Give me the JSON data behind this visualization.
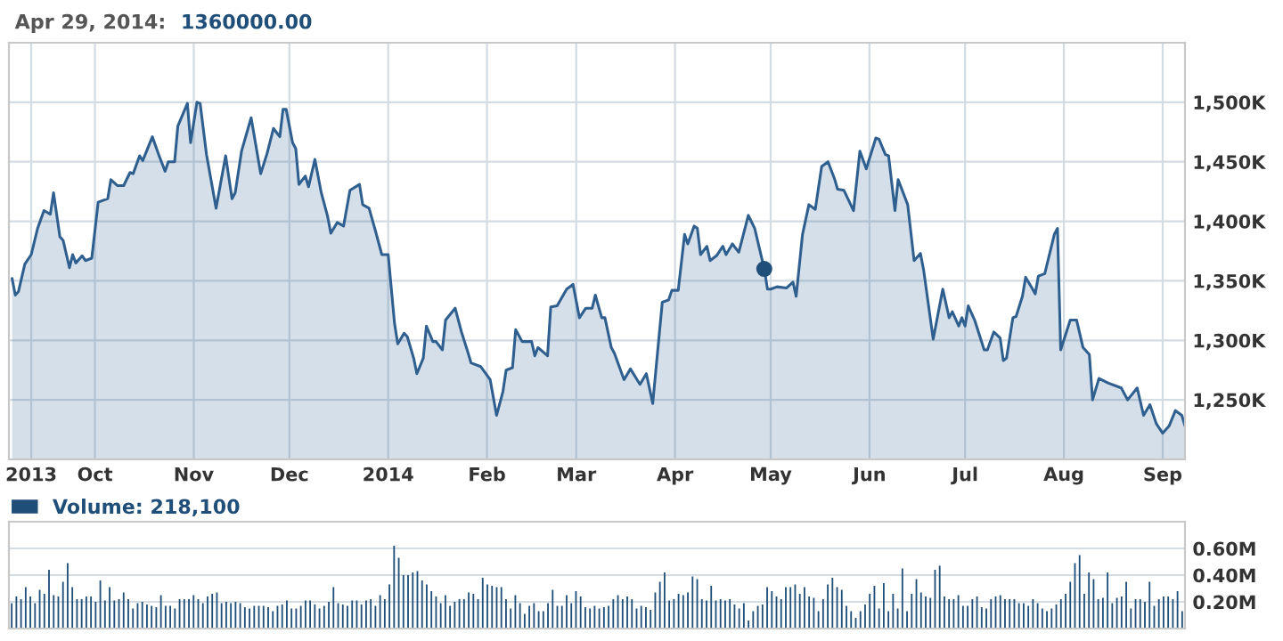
{
  "chart_data": [
    {
      "type": "area",
      "annotations": [
        "Apr 29, 2014:",
        "1360000.00"
      ],
      "xlim": [
        "2013-09-04",
        "2014-09-08"
      ],
      "xticks": [
        {
          "value": "2013-09-11",
          "label": "2013"
        },
        {
          "value": "2013-10-01",
          "label": "Oct"
        },
        {
          "value": "2013-11-01",
          "label": "Nov"
        },
        {
          "value": "2013-12-01",
          "label": "Dec"
        },
        {
          "value": "2014-01-01",
          "label": "2014"
        },
        {
          "value": "2014-02-01",
          "label": "Feb"
        },
        {
          "value": "2014-03-01",
          "label": "Mar"
        },
        {
          "value": "2014-04-01",
          "label": "Apr"
        },
        {
          "value": "2014-05-01",
          "label": "May"
        },
        {
          "value": "2014-06-01",
          "label": "Jun"
        },
        {
          "value": "2014-07-01",
          "label": "Jul"
        },
        {
          "value": "2014-08-01",
          "label": "Aug"
        },
        {
          "value": "2014-09-01",
          "label": "Sep"
        }
      ],
      "ylim": [
        1200,
        1550
      ],
      "yticks": [
        {
          "value": 1250,
          "label": "1,250K"
        },
        {
          "value": 1300,
          "label": "1,300K"
        },
        {
          "value": 1350,
          "label": "1,350K"
        },
        {
          "value": 1400,
          "label": "1,400K"
        },
        {
          "value": 1450,
          "label": "1,450K"
        },
        {
          "value": 1500,
          "label": "1,500K"
        }
      ],
      "grid": true,
      "series": [
        {
          "type": "area",
          "color": "#2f5f8f",
          "marker": "none",
          "x": [
            "2013-09-05",
            "2013-09-06",
            "2013-09-07",
            "2013-09-09",
            "2013-09-11",
            "2013-09-13",
            "2013-09-15",
            "2013-09-17",
            "2013-09-18",
            "2013-09-20",
            "2013-09-21",
            "2013-09-23",
            "2013-09-24",
            "2013-09-25",
            "2013-09-27",
            "2013-09-28",
            "2013-09-30",
            "2013-10-02",
            "2013-10-05",
            "2013-10-06",
            "2013-10-08",
            "2013-10-10",
            "2013-10-12",
            "2013-10-13",
            "2013-10-15",
            "2013-10-16",
            "2013-10-19",
            "2013-10-21",
            "2013-10-23",
            "2013-10-24",
            "2013-10-26",
            "2013-10-27",
            "2013-10-30",
            "2013-10-31",
            "2013-11-02",
            "2013-11-03",
            "2013-11-05",
            "2013-11-08",
            "2013-11-11",
            "2013-11-13",
            "2013-11-14",
            "2013-11-16",
            "2013-11-19",
            "2013-11-22",
            "2013-11-24",
            "2013-11-26",
            "2013-11-28",
            "2013-11-29",
            "2013-11-30",
            "2013-12-02",
            "2013-12-03",
            "2013-12-04",
            "2013-12-06",
            "2013-12-07",
            "2013-12-09",
            "2013-12-11",
            "2013-12-13",
            "2013-12-14",
            "2013-12-16",
            "2013-12-18",
            "2013-12-20",
            "2013-12-23",
            "2013-12-24",
            "2013-12-26",
            "2013-12-28",
            "2013-12-30",
            "2014-01-01",
            "2014-01-03",
            "2014-01-04",
            "2014-01-06",
            "2014-01-07",
            "2014-01-09",
            "2014-01-10",
            "2014-01-12",
            "2014-01-13",
            "2014-01-15",
            "2014-01-16",
            "2014-01-18",
            "2014-01-19",
            "2014-01-22",
            "2014-01-24",
            "2014-01-26",
            "2014-01-27",
            "2014-01-30",
            "2014-02-02",
            "2014-02-04",
            "2014-02-06",
            "2014-02-07",
            "2014-02-09",
            "2014-02-10",
            "2014-02-12",
            "2014-02-15",
            "2014-02-16",
            "2014-02-17",
            "2014-02-20",
            "2014-02-21",
            "2014-02-23",
            "2014-02-26",
            "2014-02-28",
            "2014-03-02",
            "2014-03-04",
            "2014-03-06",
            "2014-03-07",
            "2014-03-09",
            "2014-03-10",
            "2014-03-12",
            "2014-03-13",
            "2014-03-16",
            "2014-03-18",
            "2014-03-21",
            "2014-03-23",
            "2014-03-25",
            "2014-03-28",
            "2014-03-30",
            "2014-03-31",
            "2014-04-02",
            "2014-04-04",
            "2014-04-05",
            "2014-04-07",
            "2014-04-08",
            "2014-04-09",
            "2014-04-11",
            "2014-04-12",
            "2014-04-14",
            "2014-04-16",
            "2014-04-17",
            "2014-04-19",
            "2014-04-21",
            "2014-04-24",
            "2014-04-26",
            "2014-04-29",
            "2014-04-30",
            "2014-05-01",
            "2014-05-03",
            "2014-05-06",
            "2014-05-08",
            "2014-05-09",
            "2014-05-11",
            "2014-05-13",
            "2014-05-15",
            "2014-05-17",
            "2014-05-19",
            "2014-05-21",
            "2014-05-22",
            "2014-05-24",
            "2014-05-27",
            "2014-05-29",
            "2014-05-31",
            "2014-06-03",
            "2014-06-04",
            "2014-06-06",
            "2014-06-07",
            "2014-06-09",
            "2014-06-10",
            "2014-06-13",
            "2014-06-15",
            "2014-06-17",
            "2014-06-18",
            "2014-06-21",
            "2014-06-24",
            "2014-06-26",
            "2014-06-27",
            "2014-06-29",
            "2014-06-30",
            "2014-07-01",
            "2014-07-02",
            "2014-07-04",
            "2014-07-07",
            "2014-07-08",
            "2014-07-10",
            "2014-07-12",
            "2014-07-13",
            "2014-07-14",
            "2014-07-16",
            "2014-07-17",
            "2014-07-19",
            "2014-07-20",
            "2014-07-22",
            "2014-07-23",
            "2014-07-24",
            "2014-07-26",
            "2014-07-29",
            "2014-07-30",
            "2014-07-31",
            "2014-08-03",
            "2014-08-05",
            "2014-08-07",
            "2014-08-09",
            "2014-08-10",
            "2014-08-12",
            "2014-08-15",
            "2014-08-19",
            "2014-08-21",
            "2014-08-24",
            "2014-08-26",
            "2014-08-28",
            "2014-08-30",
            "2014-09-01",
            "2014-09-03",
            "2014-09-05",
            "2014-09-07",
            "2014-09-08"
          ],
          "values": [
            1352,
            1338,
            1341,
            1364,
            1372,
            1394,
            1409,
            1406,
            1424,
            1387,
            1384,
            1361,
            1372,
            1365,
            1371,
            1367,
            1369,
            1416,
            1419,
            1435,
            1430,
            1430,
            1441,
            1440,
            1455,
            1451,
            1471,
            1456,
            1442,
            1450,
            1450,
            1480,
            1499,
            1466,
            1500,
            1499,
            1456,
            1411,
            1455,
            1419,
            1424,
            1459,
            1487,
            1440,
            1457,
            1478,
            1471,
            1494,
            1494,
            1466,
            1461,
            1431,
            1438,
            1429,
            1452,
            1424,
            1404,
            1390,
            1399,
            1396,
            1426,
            1431,
            1414,
            1411,
            1392,
            1372,
            1372,
            1314,
            1297,
            1306,
            1303,
            1285,
            1272,
            1285,
            1312,
            1299,
            1299,
            1292,
            1317,
            1327,
            1307,
            1290,
            1281,
            1278,
            1267,
            1237,
            1257,
            1275,
            1277,
            1309,
            1299,
            1299,
            1287,
            1294,
            1287,
            1328,
            1329,
            1343,
            1347,
            1319,
            1327,
            1327,
            1338,
            1319,
            1319,
            1294,
            1289,
            1267,
            1276,
            1263,
            1272,
            1247,
            1332,
            1334,
            1342,
            1342,
            1389,
            1381,
            1396,
            1394,
            1372,
            1379,
            1367,
            1371,
            1379,
            1372,
            1381,
            1374,
            1405,
            1394,
            1360,
            1343,
            1343,
            1345,
            1344,
            1349,
            1337,
            1389,
            1414,
            1410,
            1446,
            1450,
            1436,
            1427,
            1426,
            1409,
            1459,
            1444,
            1470,
            1469,
            1456,
            1455,
            1409,
            1435,
            1414,
            1367,
            1373,
            1359,
            1301,
            1343,
            1319,
            1324,
            1312,
            1319,
            1312,
            1329,
            1317,
            1292,
            1292,
            1307,
            1302,
            1283,
            1285,
            1319,
            1320,
            1337,
            1353,
            1344,
            1339,
            1354,
            1356,
            1389,
            1394,
            1292,
            1317,
            1317,
            1294,
            1288,
            1250,
            1268,
            1264,
            1260,
            1250,
            1260,
            1237,
            1246,
            1230,
            1222,
            1228,
            1241,
            1237,
            1228
          ]
        },
        {
          "type": "scatter",
          "color": "#1f4e79",
          "marker": "circle",
          "x": [
            "2014-04-29"
          ],
          "values": [
            1360
          ]
        }
      ]
    },
    {
      "type": "bar",
      "tick_labels": "y",
      "grid": "y",
      "legend": "top left",
      "ylim": [
        0,
        0.8
      ],
      "yticks": [
        {
          "value": 0.2,
          "label": "0.20M"
        },
        {
          "value": 0.4,
          "label": "0.40M"
        },
        {
          "value": 0.6,
          "label": "0.60M"
        }
      ],
      "categories": [
        null,
        null,
        null,
        null,
        null,
        null,
        null,
        null,
        null,
        null,
        null,
        null,
        null,
        null,
        null,
        null,
        null,
        null,
        null,
        null,
        null,
        null,
        null,
        null,
        null,
        null,
        null,
        null,
        null,
        null,
        null,
        null,
        null,
        null,
        null,
        null,
        null,
        null,
        null,
        null,
        null,
        null,
        null,
        null,
        null,
        null,
        null,
        null,
        null,
        null,
        null,
        null,
        null,
        null,
        null,
        null,
        null,
        null,
        null,
        null,
        null,
        null,
        null,
        null,
        null,
        null,
        null,
        null,
        null,
        null,
        null,
        null,
        null,
        null,
        null,
        null,
        null,
        null,
        null,
        null,
        null,
        null,
        null,
        null,
        null,
        null,
        null,
        null,
        null,
        null,
        null,
        null,
        null,
        null,
        null,
        null,
        null,
        null,
        null,
        null,
        null,
        null,
        null,
        null,
        null,
        null,
        null,
        null,
        null,
        null,
        null,
        null,
        null,
        null,
        null,
        null,
        null,
        null,
        null,
        null,
        null,
        null,
        null,
        null,
        null,
        null,
        null,
        null,
        null,
        null,
        null,
        null,
        null,
        null,
        null,
        null,
        null,
        null,
        null,
        null,
        null,
        null,
        null,
        null,
        null,
        null,
        null,
        null,
        null,
        null,
        null,
        null,
        null,
        null,
        null,
        null,
        null,
        null,
        null,
        null,
        null,
        null,
        null,
        null,
        null,
        null,
        null,
        null,
        null,
        null,
        null,
        null,
        null,
        null,
        null,
        null,
        null,
        null,
        null,
        null,
        null,
        null,
        null,
        null,
        null,
        null,
        null,
        null,
        null,
        null,
        null,
        null,
        null,
        null,
        null,
        null,
        null,
        null,
        null,
        null,
        null,
        null,
        null,
        null,
        null,
        null,
        null,
        null,
        null,
        null,
        null,
        null,
        null,
        null,
        null,
        null,
        null,
        null,
        null,
        null,
        null,
        null,
        null,
        null,
        null,
        null,
        null,
        null,
        null,
        null,
        null,
        null,
        null,
        null,
        null,
        null,
        null,
        null,
        null,
        null,
        null,
        null,
        null,
        null,
        null,
        null,
        null,
        null,
        null,
        null,
        null,
        null
      ],
      "series": [
        {
          "name": "Volume: 218,100",
          "color": "#1f4e79",
          "values": [
            0.19,
            0.24,
            0.22,
            0.31,
            0.24,
            0.19,
            0.29,
            0.26,
            0.44,
            0.25,
            0.24,
            0.35,
            0.49,
            0.31,
            0.22,
            0.22,
            0.24,
            0.24,
            0.2,
            0.36,
            0.21,
            0.31,
            0.21,
            0.22,
            0.27,
            0.22,
            0.15,
            0.19,
            0.2,
            0.18,
            0.17,
            0.16,
            0.25,
            0.17,
            0.17,
            0.15,
            0.22,
            0.22,
            0.22,
            0.25,
            0.22,
            0.19,
            0.24,
            0.26,
            0.27,
            0.19,
            0.2,
            0.19,
            0.2,
            0.19,
            0.16,
            0.15,
            0.17,
            0.17,
            0.17,
            0.16,
            0.13,
            0.17,
            0.18,
            0.21,
            0.15,
            0.15,
            0.17,
            0.21,
            0.21,
            0.18,
            0.15,
            0.17,
            0.2,
            0.31,
            0.19,
            0.18,
            0.17,
            0.21,
            0.21,
            0.18,
            0.21,
            0.22,
            0.17,
            0.25,
            0.22,
            0.33,
            0.62,
            0.53,
            0.4,
            0.4,
            0.42,
            0.43,
            0.36,
            0.33,
            0.28,
            0.24,
            0.19,
            0.25,
            0.17,
            0.2,
            0.22,
            0.22,
            0.27,
            0.26,
            0.22,
            0.38,
            0.33,
            0.32,
            0.31,
            0.31,
            0.22,
            0.15,
            0.25,
            0.19,
            0.11,
            0.17,
            0.19,
            0.13,
            0.13,
            0.19,
            0.29,
            0.17,
            0.17,
            0.25,
            0.19,
            0.28,
            0.24,
            0.16,
            0.15,
            0.17,
            0.15,
            0.16,
            0.17,
            0.22,
            0.25,
            0.22,
            0.24,
            0.22,
            0.15,
            0.17,
            0.16,
            0.14,
            0.27,
            0.35,
            0.42,
            0.21,
            0.22,
            0.26,
            0.25,
            0.27,
            0.39,
            0.37,
            0.22,
            0.21,
            0.32,
            0.21,
            0.22,
            0.21,
            0.22,
            0.18,
            0.15,
            0.19,
            0.06,
            0.13,
            0.17,
            0.18,
            0.31,
            0.28,
            0.24,
            0.22,
            0.31,
            0.31,
            0.33,
            0.26,
            0.31,
            0.24,
            0.23,
            0.13,
            0.22,
            0.33,
            0.38,
            0.31,
            0.29,
            0.17,
            0.13,
            0.08,
            0.13,
            0.18,
            0.26,
            0.32,
            0.15,
            0.34,
            0.13,
            0.26,
            0.15,
            0.45,
            0.13,
            0.26,
            0.37,
            0.27,
            0.24,
            0.23,
            0.44,
            0.47,
            0.24,
            0.22,
            0.22,
            0.25,
            0.17,
            0.17,
            0.22,
            0.24,
            0.16,
            0.15,
            0.22,
            0.24,
            0.25,
            0.22,
            0.22,
            0.22,
            0.19,
            0.19,
            0.17,
            0.22,
            0.19,
            0.15,
            0.13,
            0.15,
            0.18,
            0.22,
            0.26,
            0.35,
            0.49,
            0.55,
            0.26,
            0.42,
            0.37,
            0.22,
            0.23,
            0.42,
            0.19,
            0.23,
            0.24,
            0.35,
            0.15,
            0.22,
            0.22,
            0.2,
            0.35,
            0.17,
            0.22,
            0.24,
            0.24,
            0.22,
            0.28,
            0.13
          ]
        }
      ]
    }
  ]
}
